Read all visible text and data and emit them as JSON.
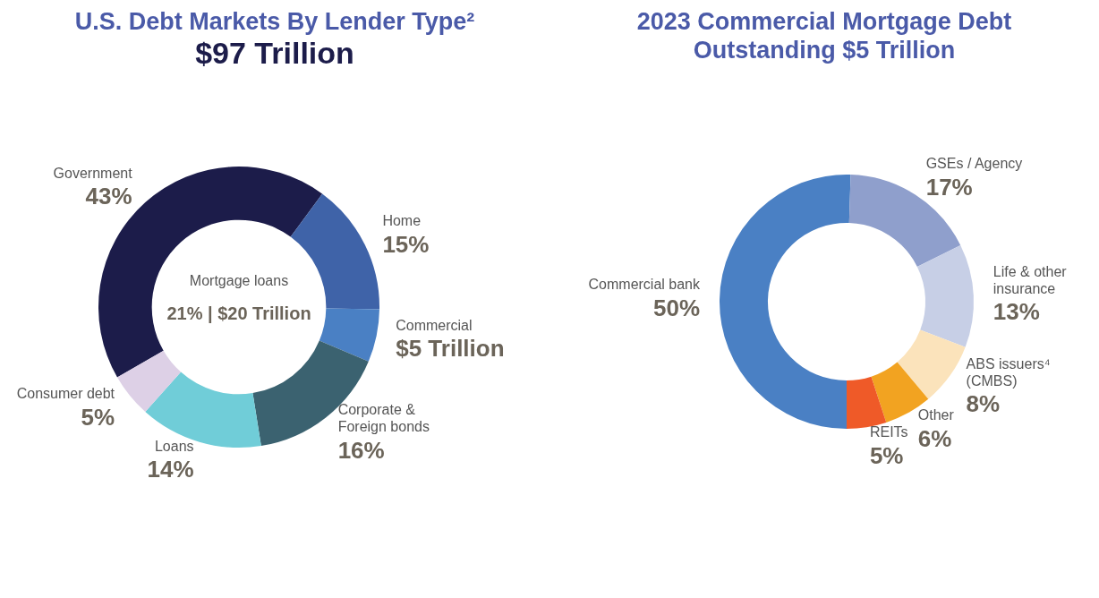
{
  "chart_data": [
    {
      "type": "donut",
      "title": "U.S. Debt Markets By Lender Type²",
      "subtitle": "$97 Trillion",
      "categories": [
        "Government",
        "Home",
        "Commercial",
        "Corporate & Foreign bonds",
        "Loans",
        "Consumer debt"
      ],
      "values": [
        43,
        15,
        6,
        16,
        14,
        5
      ],
      "colors": [
        "#1c1c4a",
        "#3f63a8",
        "#4a80c4",
        "#3b6270",
        "#70cdd8",
        "#ddd0e6"
      ],
      "value_labels": [
        "43%",
        "15%",
        null,
        "16%",
        "14%",
        "5%"
      ],
      "annotations": [
        "Mortgage loans",
        "21% | $20 Trillion",
        {
          "text": "$5 Trillion",
          "x": "Commercial"
        }
      ],
      "legend": false
    },
    {
      "type": "donut",
      "title": "2023 Commercial Mortgage Debt Outstanding $5 Trillion",
      "categories": [
        "Commercial bank",
        "GSEs / Agency",
        "Life & other insurance",
        "ABS issuers⁴ (CMBS)",
        "Other",
        "REITs"
      ],
      "values": [
        50,
        17,
        13,
        8,
        6,
        5
      ],
      "colors": [
        "#4a80c4",
        "#8f9fcc",
        "#c7cfe6",
        "#fbe3bb",
        "#f2a321",
        "#ef5a28"
      ],
      "data_labels": false,
      "value_labels": [
        "50%",
        "17%",
        "13%",
        "8%",
        "6%",
        "5%"
      ],
      "legend": false
    }
  ]
}
